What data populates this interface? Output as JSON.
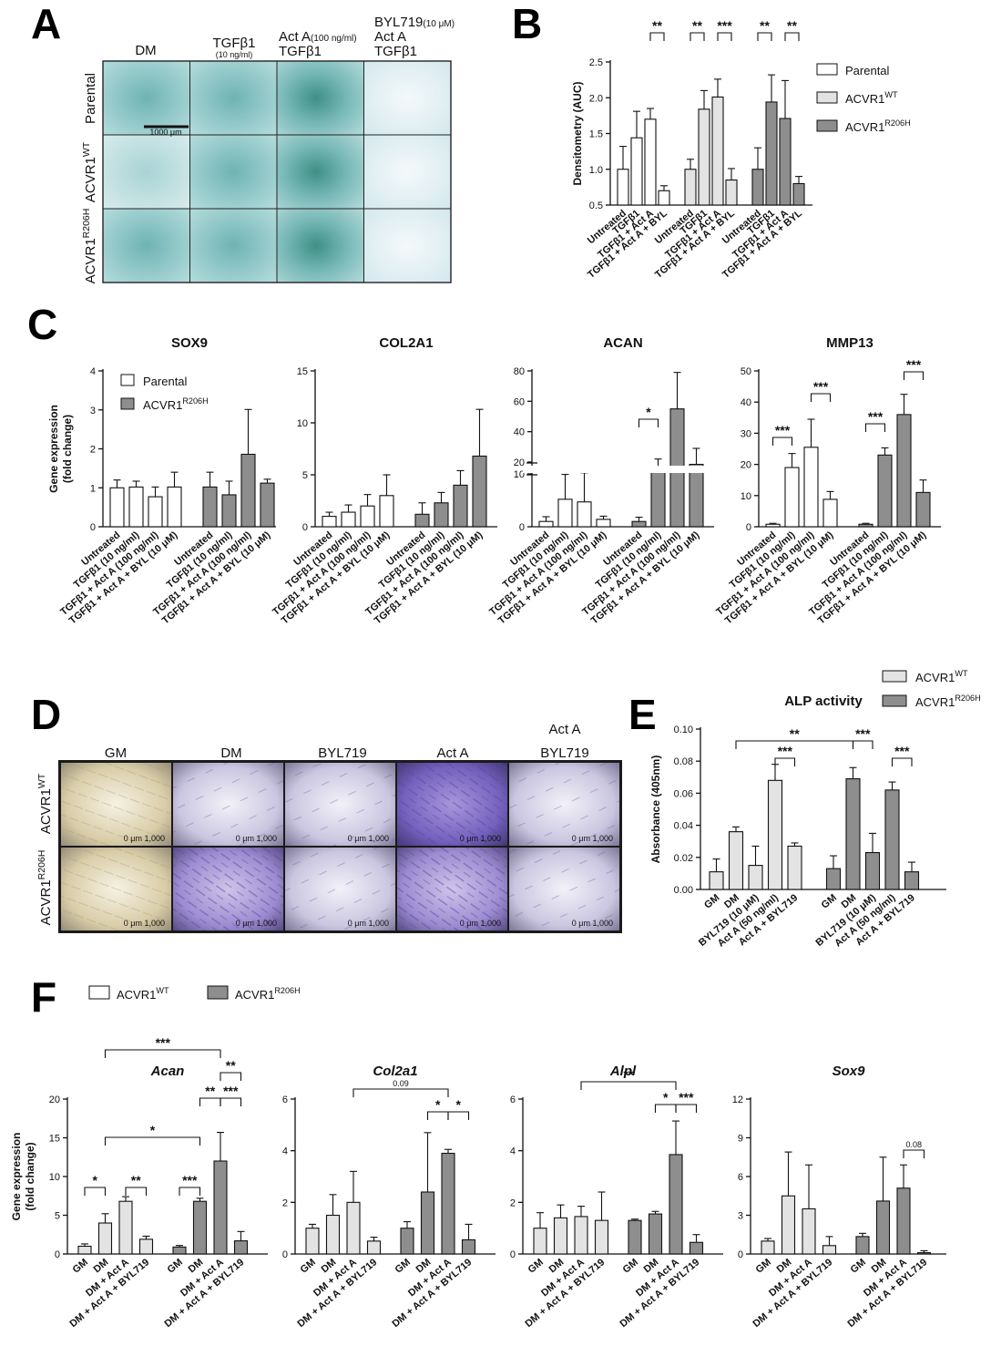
{
  "colors": {
    "parental": "#ffffff",
    "wt": "#e3e3e3",
    "mut": "#8e8e8e",
    "stain_blue": "#8fc4c8",
    "stain_purple": "#6a4fb0"
  },
  "panelA": {
    "label": "A",
    "columns": [
      {
        "line1": "DM",
        "line2": "",
        "line3": ""
      },
      {
        "line1": "TGFβ1",
        "line2": "(10 ng/ml)",
        "line3": ""
      },
      {
        "line1": "Act A(100 ng/ml)",
        "line2": "TGFβ1",
        "line3": ""
      },
      {
        "line1": "BYL719(10 μM)",
        "line2": "Act A",
        "line3": "TGFβ1"
      }
    ],
    "rows": [
      {
        "label": "Parental",
        "sup": ""
      },
      {
        "label": "ACVR1",
        "sup": "WT"
      },
      {
        "label": "ACVR1",
        "sup": "R206H"
      }
    ],
    "scalebar_label": "1000 μm"
  },
  "panelD": {
    "label": "D",
    "columns": [
      {
        "line1": "GM",
        "line2": ""
      },
      {
        "line1": "DM",
        "line2": ""
      },
      {
        "line1": "BYL719",
        "line2": ""
      },
      {
        "line1": "Act A",
        "line2": ""
      },
      {
        "line1": "Act A",
        "line2": "BYL719"
      }
    ],
    "rows": [
      {
        "label": "ACVR1",
        "sup": "WT"
      },
      {
        "label": "ACVR1",
        "sup": "R206H"
      }
    ],
    "scale_text": "0   μm   1,000"
  },
  "chart_data": [
    {
      "panel": "B",
      "type": "bar",
      "title": "",
      "ylabel": "Densitometry (AUC)",
      "ylim": [
        0.5,
        2.5
      ],
      "yticks": [
        0.5,
        1.0,
        1.5,
        2.0,
        2.5
      ],
      "tick_labels": [
        "0.5",
        "1.0",
        "1.5",
        "2.0",
        "2.5"
      ],
      "groups": [
        {
          "series": "Parental",
          "categories": [
            "Untreated",
            "TGFβ1",
            "TGFβ1 + Act A",
            "TGFβ1 + Act A + BYL"
          ],
          "values": [
            1.0,
            1.44,
            1.7,
            0.7
          ],
          "err": [
            0.32,
            0.37,
            0.15,
            0.07
          ]
        },
        {
          "series": "ACVR1WT",
          "categories": [
            "Untreated",
            "TGFβ1",
            "TGFβ1 + Act A",
            "TGFβ1 + Act A + BYL"
          ],
          "values": [
            1.0,
            1.84,
            2.01,
            0.85
          ],
          "err": [
            0.14,
            0.26,
            0.25,
            0.16
          ]
        },
        {
          "series": "ACVR1R206H",
          "categories": [
            "Untreated",
            "TGFβ1",
            "TGFβ1 + Act A",
            "TGFβ1 + Act A + BYL"
          ],
          "values": [
            1.0,
            1.94,
            1.71,
            0.8
          ],
          "err": [
            0.3,
            0.38,
            0.53,
            0.1
          ]
        }
      ],
      "legend": [
        {
          "name": "Parental",
          "sup": ""
        },
        {
          "name": "ACVR1",
          "sup": "WT"
        },
        {
          "name": "ACVR1",
          "sup": "R206H"
        }
      ],
      "significance": [
        {
          "from": "0.2",
          "to": "0.3",
          "label": "**"
        },
        {
          "from": "1.0",
          "to": "1.1",
          "label": "**"
        },
        {
          "from": "1.2",
          "to": "1.3",
          "label": "***"
        },
        {
          "from": "2.0",
          "to": "2.1",
          "label": "**"
        },
        {
          "from": "2.2",
          "to": "2.3",
          "label": "**"
        }
      ]
    },
    {
      "panel": "C",
      "type": "bar",
      "title": "SOX9",
      "ylabel": "Gene expression (fold change)",
      "ylim": [
        0,
        4
      ],
      "yticks": [
        0,
        1,
        2,
        3,
        4
      ],
      "tick_labels": [
        "0",
        "1",
        "2",
        "3",
        "4"
      ],
      "categories": [
        "Untreated",
        "TGFβ1 (10 ng/ml)",
        "TGFβ1 + Act A (100 ng/ml)",
        "TGFβ1 + Act A + BYL (10 μM)"
      ],
      "series": [
        {
          "name": "Parental",
          "values": [
            1.0,
            1.02,
            0.77,
            1.02
          ],
          "err": [
            0.2,
            0.15,
            0.25,
            0.38
          ]
        },
        {
          "name": "ACVR1R206H",
          "values": [
            1.02,
            0.82,
            1.86,
            1.12
          ],
          "err": [
            0.38,
            0.35,
            1.15,
            0.1
          ]
        }
      ],
      "legend": [
        {
          "name": "Parental",
          "sup": ""
        },
        {
          "name": "ACVR1",
          "sup": "R206H"
        }
      ],
      "significance": []
    },
    {
      "panel": "C",
      "type": "bar",
      "title": "COL2A1",
      "ylabel": "",
      "ylim": [
        0,
        15
      ],
      "yticks": [
        0,
        5,
        10,
        15
      ],
      "tick_labels": [
        "0",
        "5",
        "10",
        "15"
      ],
      "categories": [
        "Untreated",
        "TGFβ1 (10 ng/ml)",
        "TGFβ1 + Act A (100 ng/ml)",
        "TGFβ1 + Act A + BYL (10 μM)"
      ],
      "series": [
        {
          "name": "Parental",
          "values": [
            1.0,
            1.4,
            2.0,
            3.0
          ],
          "err": [
            0.4,
            0.7,
            1.1,
            2.0
          ]
        },
        {
          "name": "ACVR1R206H",
          "values": [
            1.2,
            2.3,
            4.0,
            6.8
          ],
          "err": [
            1.1,
            1.0,
            1.4,
            4.5
          ]
        }
      ],
      "significance": []
    },
    {
      "panel": "C",
      "type": "bar",
      "title": "ACAN",
      "broken": true,
      "ylabel": "",
      "ylim": [
        0,
        80
      ],
      "yticks": [
        0,
        10,
        20,
        40,
        60,
        80
      ],
      "tick_labels": [
        "0",
        "10",
        "20",
        "40",
        "60",
        "80"
      ],
      "categories": [
        "Untreated",
        "TGFβ1 (10 ng/ml)",
        "TGFβ1 + Act A (100 ng/ml)",
        "TGFβ1 + Act A + BYL (10 μM)"
      ],
      "series": [
        {
          "name": "Parental",
          "values": [
            1.0,
            5.2,
            4.7,
            1.4
          ],
          "err": [
            0.9,
            4.7,
            6.0,
            0.6
          ]
        },
        {
          "name": "ACVR1R206H",
          "values": [
            1.0,
            15.0,
            55.0,
            18.0
          ],
          "err": [
            0.8,
            7.0,
            24.0,
            11.0
          ]
        }
      ],
      "significance": [
        {
          "from": "1.0",
          "to": "1.1",
          "label": "*"
        }
      ]
    },
    {
      "panel": "C",
      "type": "bar",
      "title": "MMP13",
      "ylabel": "",
      "ylim": [
        0,
        50
      ],
      "yticks": [
        0,
        10,
        20,
        30,
        40,
        50
      ],
      "tick_labels": [
        "0",
        "10",
        "20",
        "30",
        "40",
        "50"
      ],
      "categories": [
        "Untreated",
        "TGFβ1 (10 ng/ml)",
        "TGFβ1 + Act A (100 ng/ml)",
        "TGFβ1 + Act A + BYL (10 μM)"
      ],
      "series": [
        {
          "name": "Parental",
          "values": [
            0.8,
            19.0,
            25.5,
            8.8
          ],
          "err": [
            0.3,
            4.5,
            9.0,
            2.5
          ]
        },
        {
          "name": "ACVR1R206H",
          "values": [
            0.8,
            23.0,
            36.0,
            11.0
          ],
          "err": [
            0.3,
            2.3,
            6.5,
            4.0
          ]
        }
      ],
      "significance": [
        {
          "from": "0.0",
          "to": "0.1",
          "label": "***"
        },
        {
          "from": "0.2",
          "to": "0.3",
          "label": "***"
        },
        {
          "from": "1.0",
          "to": "1.1",
          "label": "***"
        },
        {
          "from": "1.2",
          "to": "1.3",
          "label": "***"
        }
      ]
    },
    {
      "panel": "E",
      "type": "bar",
      "title": "ALP activity",
      "ylabel": "Absorbance (405nm)",
      "ylim": [
        0,
        0.1
      ],
      "yticks": [
        0,
        0.02,
        0.04,
        0.06,
        0.08,
        0.1
      ],
      "tick_labels": [
        "0.00",
        "0.02",
        "0.04",
        "0.06",
        "0.08",
        "0.10"
      ],
      "categories": [
        "GM",
        "DM",
        "BYL719 (10 μM)",
        "Act A (50 ng/ml)",
        "Act A + BYL719"
      ],
      "series": [
        {
          "name": "ACVR1WT",
          "values": [
            0.011,
            0.036,
            0.015,
            0.068,
            0.027
          ],
          "err": [
            0.008,
            0.003,
            0.012,
            0.01,
            0.002
          ]
        },
        {
          "name": "ACVR1R206H",
          "values": [
            0.013,
            0.069,
            0.023,
            0.062,
            0.011
          ],
          "err": [
            0.008,
            0.007,
            0.012,
            0.005,
            0.006
          ]
        }
      ],
      "legend": [
        {
          "name": "ACVR1",
          "sup": "WT"
        },
        {
          "name": "ACVR1",
          "sup": "R206H"
        }
      ],
      "significance": [
        {
          "from": "0.1",
          "to": "1.1",
          "label": "**"
        },
        {
          "from": "0.3",
          "to": "0.4",
          "label": "***"
        },
        {
          "from": "1.1",
          "to": "1.2",
          "label": "***"
        },
        {
          "from": "1.3",
          "to": "1.4",
          "label": "***"
        }
      ]
    },
    {
      "panel": "F",
      "type": "bar",
      "title": "Acan",
      "ylabel": "Gene expression (fold change)",
      "ylim": [
        0,
        20
      ],
      "yticks": [
        0,
        5,
        10,
        15,
        20
      ],
      "tick_labels": [
        "0",
        "5",
        "10",
        "15",
        "20"
      ],
      "categories": [
        "GM",
        "DM",
        "DM + Act A",
        "DM + Act A + BYL719"
      ],
      "series": [
        {
          "name": "ACVR1WT",
          "values": [
            1.0,
            4.0,
            6.8,
            1.9
          ],
          "err": [
            0.3,
            1.2,
            0.6,
            0.4
          ]
        },
        {
          "name": "ACVR1R206H",
          "values": [
            0.9,
            6.8,
            12.0,
            1.7
          ],
          "err": [
            0.2,
            0.4,
            3.7,
            1.2
          ]
        }
      ],
      "legend": [
        {
          "name": "ACVR1",
          "sup": "WT"
        },
        {
          "name": "ACVR1",
          "sup": "R206H"
        }
      ],
      "significance": [
        {
          "from": "0.1",
          "to": "1.2",
          "label": "***"
        },
        {
          "from": "0.1",
          "to": "1.1",
          "label": "*"
        },
        {
          "from": "1.2",
          "to": "1.3",
          "label": "**"
        },
        {
          "from": "1.1",
          "to": "1.2",
          "label": "**"
        },
        {
          "from": "1.2",
          "to": "1.3",
          "label": "***"
        },
        {
          "from": "0.0",
          "to": "0.1",
          "label": "*"
        },
        {
          "from": "0.2",
          "to": "0.3",
          "label": "**"
        },
        {
          "from": "1.0",
          "to": "1.1",
          "label": "***"
        }
      ]
    },
    {
      "panel": "F",
      "type": "bar",
      "title": "Col2a1",
      "ylabel": "",
      "ylim": [
        0,
        6
      ],
      "yticks": [
        0,
        2,
        4,
        6
      ],
      "tick_labels": [
        "0",
        "2",
        "4",
        "6"
      ],
      "categories": [
        "GM",
        "DM",
        "DM + Act A",
        "DM + Act A + BYL719"
      ],
      "series": [
        {
          "name": "ACVR1WT",
          "values": [
            1.0,
            1.5,
            2.0,
            0.5
          ],
          "err": [
            0.15,
            0.8,
            1.2,
            0.15
          ]
        },
        {
          "name": "ACVR1R206H",
          "values": [
            1.0,
            2.4,
            3.9,
            0.55
          ],
          "err": [
            0.25,
            2.3,
            0.15,
            0.6
          ]
        }
      ],
      "significance": [
        {
          "from": "0.2",
          "to": "1.2",
          "label": "0.09"
        },
        {
          "from": "1.1",
          "to": "1.2",
          "label": "*"
        },
        {
          "from": "1.2",
          "to": "1.3",
          "label": "*"
        }
      ]
    },
    {
      "panel": "F",
      "type": "bar",
      "title": "Alpl",
      "ylabel": "",
      "ylim": [
        0,
        6
      ],
      "yticks": [
        0,
        2,
        4,
        6
      ],
      "tick_labels": [
        "0",
        "2",
        "4",
        "6"
      ],
      "categories": [
        "GM",
        "DM",
        "DM + Act A",
        "DM + Act A + BYL719"
      ],
      "series": [
        {
          "name": "ACVR1WT",
          "values": [
            1.0,
            1.4,
            1.45,
            1.3
          ],
          "err": [
            0.6,
            0.5,
            0.4,
            1.1
          ]
        },
        {
          "name": "ACVR1R206H",
          "values": [
            1.3,
            1.55,
            3.85,
            0.45
          ],
          "err": [
            0.05,
            0.1,
            1.3,
            0.3
          ]
        }
      ],
      "significance": [
        {
          "from": "0.2",
          "to": "1.2",
          "label": "**"
        },
        {
          "from": "1.1",
          "to": "1.2",
          "label": "*"
        },
        {
          "from": "1.2",
          "to": "1.3",
          "label": "***"
        }
      ]
    },
    {
      "panel": "F",
      "type": "bar",
      "title": "Sox9",
      "ylabel": "",
      "ylim": [
        0,
        12
      ],
      "yticks": [
        0,
        3,
        6,
        9,
        12
      ],
      "tick_labels": [
        "0",
        "3",
        "6",
        "9",
        "12"
      ],
      "categories": [
        "GM",
        "DM",
        "DM + Act A",
        "DM + Act A + BYL719"
      ],
      "series": [
        {
          "name": "ACVR1WT",
          "values": [
            1.0,
            4.5,
            3.5,
            0.65
          ],
          "err": [
            0.2,
            3.4,
            3.4,
            0.7
          ]
        },
        {
          "name": "ACVR1R206H",
          "values": [
            1.35,
            4.1,
            5.1,
            0.1
          ],
          "err": [
            0.25,
            3.4,
            1.8,
            0.15
          ]
        }
      ],
      "significance": [
        {
          "from": "1.2",
          "to": "1.3",
          "label": "0.08"
        }
      ]
    }
  ]
}
